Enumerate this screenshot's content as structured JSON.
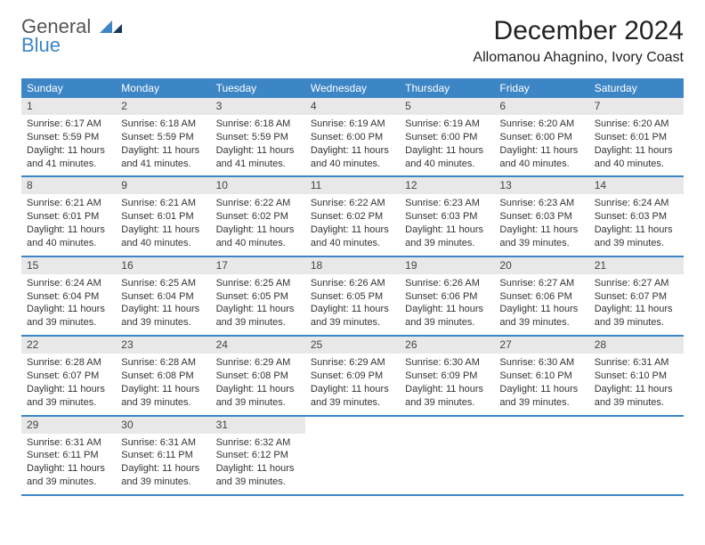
{
  "brand": {
    "general": "General",
    "blue": "Blue"
  },
  "title": "December 2024",
  "location": "Allomanou Ahagnino, Ivory Coast",
  "weekdays": [
    "Sunday",
    "Monday",
    "Tuesday",
    "Wednesday",
    "Thursday",
    "Friday",
    "Saturday"
  ],
  "colors": {
    "header_bg": "#3d86c6",
    "header_text": "#ffffff",
    "daynum_bg": "#e8e8e8",
    "border": "#3d86c6"
  },
  "days": [
    {
      "n": "1",
      "sr": "6:17 AM",
      "ss": "5:59 PM",
      "dl": "11 hours and 41 minutes."
    },
    {
      "n": "2",
      "sr": "6:18 AM",
      "ss": "5:59 PM",
      "dl": "11 hours and 41 minutes."
    },
    {
      "n": "3",
      "sr": "6:18 AM",
      "ss": "5:59 PM",
      "dl": "11 hours and 41 minutes."
    },
    {
      "n": "4",
      "sr": "6:19 AM",
      "ss": "6:00 PM",
      "dl": "11 hours and 40 minutes."
    },
    {
      "n": "5",
      "sr": "6:19 AM",
      "ss": "6:00 PM",
      "dl": "11 hours and 40 minutes."
    },
    {
      "n": "6",
      "sr": "6:20 AM",
      "ss": "6:00 PM",
      "dl": "11 hours and 40 minutes."
    },
    {
      "n": "7",
      "sr": "6:20 AM",
      "ss": "6:01 PM",
      "dl": "11 hours and 40 minutes."
    },
    {
      "n": "8",
      "sr": "6:21 AM",
      "ss": "6:01 PM",
      "dl": "11 hours and 40 minutes."
    },
    {
      "n": "9",
      "sr": "6:21 AM",
      "ss": "6:01 PM",
      "dl": "11 hours and 40 minutes."
    },
    {
      "n": "10",
      "sr": "6:22 AM",
      "ss": "6:02 PM",
      "dl": "11 hours and 40 minutes."
    },
    {
      "n": "11",
      "sr": "6:22 AM",
      "ss": "6:02 PM",
      "dl": "11 hours and 40 minutes."
    },
    {
      "n": "12",
      "sr": "6:23 AM",
      "ss": "6:03 PM",
      "dl": "11 hours and 39 minutes."
    },
    {
      "n": "13",
      "sr": "6:23 AM",
      "ss": "6:03 PM",
      "dl": "11 hours and 39 minutes."
    },
    {
      "n": "14",
      "sr": "6:24 AM",
      "ss": "6:03 PM",
      "dl": "11 hours and 39 minutes."
    },
    {
      "n": "15",
      "sr": "6:24 AM",
      "ss": "6:04 PM",
      "dl": "11 hours and 39 minutes."
    },
    {
      "n": "16",
      "sr": "6:25 AM",
      "ss": "6:04 PM",
      "dl": "11 hours and 39 minutes."
    },
    {
      "n": "17",
      "sr": "6:25 AM",
      "ss": "6:05 PM",
      "dl": "11 hours and 39 minutes."
    },
    {
      "n": "18",
      "sr": "6:26 AM",
      "ss": "6:05 PM",
      "dl": "11 hours and 39 minutes."
    },
    {
      "n": "19",
      "sr": "6:26 AM",
      "ss": "6:06 PM",
      "dl": "11 hours and 39 minutes."
    },
    {
      "n": "20",
      "sr": "6:27 AM",
      "ss": "6:06 PM",
      "dl": "11 hours and 39 minutes."
    },
    {
      "n": "21",
      "sr": "6:27 AM",
      "ss": "6:07 PM",
      "dl": "11 hours and 39 minutes."
    },
    {
      "n": "22",
      "sr": "6:28 AM",
      "ss": "6:07 PM",
      "dl": "11 hours and 39 minutes."
    },
    {
      "n": "23",
      "sr": "6:28 AM",
      "ss": "6:08 PM",
      "dl": "11 hours and 39 minutes."
    },
    {
      "n": "24",
      "sr": "6:29 AM",
      "ss": "6:08 PM",
      "dl": "11 hours and 39 minutes."
    },
    {
      "n": "25",
      "sr": "6:29 AM",
      "ss": "6:09 PM",
      "dl": "11 hours and 39 minutes."
    },
    {
      "n": "26",
      "sr": "6:30 AM",
      "ss": "6:09 PM",
      "dl": "11 hours and 39 minutes."
    },
    {
      "n": "27",
      "sr": "6:30 AM",
      "ss": "6:10 PM",
      "dl": "11 hours and 39 minutes."
    },
    {
      "n": "28",
      "sr": "6:31 AM",
      "ss": "6:10 PM",
      "dl": "11 hours and 39 minutes."
    },
    {
      "n": "29",
      "sr": "6:31 AM",
      "ss": "6:11 PM",
      "dl": "11 hours and 39 minutes."
    },
    {
      "n": "30",
      "sr": "6:31 AM",
      "ss": "6:11 PM",
      "dl": "11 hours and 39 minutes."
    },
    {
      "n": "31",
      "sr": "6:32 AM",
      "ss": "6:12 PM",
      "dl": "11 hours and 39 minutes."
    }
  ],
  "labels": {
    "sunrise": "Sunrise: ",
    "sunset": "Sunset: ",
    "daylight": "Daylight: "
  },
  "layout": {
    "start_weekday": 0,
    "weeks": 5
  }
}
